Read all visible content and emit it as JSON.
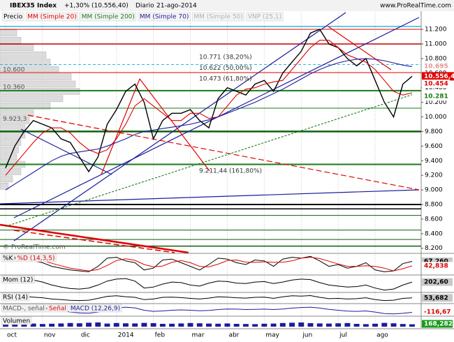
{
  "header": {
    "symbol": "IBEX35 Index",
    "change": "+1,30% (10.556,40)",
    "period": "Diario",
    "date": "21-ago-2014",
    "site": "www.ProRealTime.com",
    "watermark": "© ProRealTime.com"
  },
  "chart_data": [
    {
      "type": "line",
      "categories": [
        "oct",
        null,
        null,
        null,
        "nov",
        null,
        null,
        null,
        "dic",
        null,
        null,
        null,
        "2014",
        null,
        null,
        null,
        "feb",
        null,
        null,
        null,
        "mar",
        null,
        null,
        null,
        "abr",
        null,
        null,
        null,
        "may",
        null,
        null,
        null,
        "jun",
        null,
        null,
        null,
        "jul",
        null,
        null,
        null,
        "ago",
        null,
        null,
        null,
        null
      ],
      "series": [
        {
          "name": "Precio",
          "color": "#000000",
          "values": [
            9300,
            9600,
            9800,
            9950,
            9900,
            9850,
            9700,
            9650,
            9450,
            9250,
            9450,
            9900,
            10100,
            10350,
            10450,
            10200,
            9700,
            9950,
            10050,
            10050,
            10100,
            9950,
            9850,
            10250,
            10400,
            10350,
            10300,
            10450,
            10500,
            10350,
            10600,
            10750,
            10900,
            11150,
            11200,
            11000,
            10950,
            10800,
            10700,
            10800,
            10500,
            10200,
            10000,
            10450,
            10556.4
          ]
        },
        {
          "name": "MM (Simple 20)",
          "color": "#e00000",
          "values": [
            9200,
            9350,
            9500,
            9650,
            9780,
            9850,
            9850,
            9780,
            9650,
            9550,
            9500,
            9550,
            9700,
            9900,
            10150,
            10250,
            10150,
            10050,
            9950,
            9950,
            10050,
            10050,
            9980,
            10000,
            10150,
            10300,
            10380,
            10400,
            10450,
            10480,
            10500,
            10650,
            10800,
            10950,
            11050,
            11050,
            10950,
            10850,
            10800,
            10750,
            10650,
            10500,
            10350,
            10300,
            10330
          ]
        },
        {
          "name": "MM (Simple 200)",
          "color": "#1a7a1a",
          "dashed": true,
          "values": [
            8500,
            8541,
            8582,
            8623,
            8664,
            8705,
            8746,
            8787,
            8828,
            8869,
            8910,
            8951,
            8992,
            9033,
            9074,
            9115,
            9156,
            9197,
            9238,
            9279,
            9320,
            9361,
            9402,
            9443,
            9484,
            9525,
            9566,
            9607,
            9648,
            9689,
            9730,
            9771,
            9812,
            9853,
            9894,
            9935,
            9976,
            10017,
            10058,
            10099,
            10140,
            10181,
            10222,
            10263,
            10304
          ]
        },
        {
          "name": "MM (Simple 70)",
          "color": "#1c1c9c",
          "values": [
            9000,
            9080,
            9160,
            9240,
            9320,
            9400,
            9460,
            9500,
            9520,
            9540,
            9560,
            9600,
            9650,
            9700,
            9760,
            9800,
            9820,
            9840,
            9860,
            9880,
            9900,
            9930,
            9960,
            10000,
            10050,
            10100,
            10150,
            10200,
            10260,
            10320,
            10380,
            10450,
            10520,
            10590,
            10650,
            10700,
            10740,
            10770,
            10790,
            10800,
            10790,
            10770,
            10740,
            10710,
            10690
          ]
        }
      ],
      "inactive_legend": [
        {
          "name": "MM (Simple 50)",
          "color": "#b0b0b0"
        },
        {
          "name": "VNP (25,1)",
          "color": "#b0b0b0"
        }
      ],
      "ylim": [
        8140,
        11430
      ],
      "yticks": [
        {
          "value": 8200,
          "label": "8.200"
        },
        {
          "value": 8400,
          "label": "8.400"
        },
        {
          "value": 8600,
          "label": "8.600"
        },
        {
          "value": 8800,
          "label": "8.800"
        },
        {
          "value": 9000,
          "label": "9.000"
        },
        {
          "value": 9200,
          "label": "9.200"
        },
        {
          "value": 9400,
          "label": "9.400"
        },
        {
          "value": 9600,
          "label": "9.600"
        },
        {
          "value": 9800,
          "label": "9.800"
        },
        {
          "value": 10000,
          "label": "10.000"
        },
        {
          "value": 10200,
          "label": "10.200"
        },
        {
          "value": 10400,
          "label": "10.400"
        },
        {
          "value": 10600,
          "label": "10.600"
        },
        {
          "value": 10800,
          "label": "10.800"
        },
        {
          "value": 11000,
          "label": "11.000"
        },
        {
          "value": 11200,
          "label": "11.200"
        }
      ],
      "price_labels": [
        {
          "value": 10717,
          "label": "10.717",
          "color": "#7fa6a6",
          "style": "text"
        },
        {
          "value": 10695,
          "label": "10.695",
          "color": "#e89090",
          "style": "text"
        },
        {
          "value": 10556.4,
          "label": "10.556,40",
          "color": "#e00000",
          "style": "filled"
        },
        {
          "value": 10454,
          "label": "10.454",
          "color": "#e00000",
          "style": "text"
        },
        {
          "value": 10281,
          "label": "10.281",
          "color": "#1a7a1a",
          "style": "text"
        }
      ],
      "levels": [
        {
          "value": 11240,
          "color": "#33b5e5",
          "width": 1.5
        },
        {
          "value": 11200,
          "color": "#e00000",
          "width": 1
        },
        {
          "value": 11000,
          "color": "#c00000",
          "width": 1.5
        },
        {
          "value": 10717,
          "color": "#33b5e5",
          "width": 1,
          "dashed": true
        },
        {
          "value": 10608,
          "color": "#e00000",
          "width": 1
        },
        {
          "value": 10360,
          "color": "#1a7a1a",
          "width": 2
        },
        {
          "value": 10120,
          "color": "#1a7a1a",
          "width": 1
        },
        {
          "value": 9800,
          "color": "#0f5f0f",
          "width": 2.5
        },
        {
          "value": 9350,
          "color": "#1a7a1a",
          "width": 2
        },
        {
          "value": 8800,
          "color": "#000000",
          "width": 2
        },
        {
          "value": 8740,
          "color": "#000000",
          "width": 1.5
        },
        {
          "value": 8650,
          "color": "#0f5f0f",
          "width": 1
        },
        {
          "value": 8450,
          "color": "#0f5f0f",
          "width": 1
        },
        {
          "value": 8320,
          "color": "#0f5f0f",
          "width": 1
        },
        {
          "value": 8230,
          "color": "#0f5f0f",
          "width": 1.5
        }
      ],
      "annotations": [
        {
          "value": 10771,
          "label": "10.771 (38,20%)"
        },
        {
          "value": 10622,
          "label": "10.622 (50,00%)"
        },
        {
          "value": 10473,
          "label": "10.473 (61,80%)"
        },
        {
          "value": 9211.44,
          "label": "9.211,44 (161,80%)"
        }
      ],
      "left_labels": [
        {
          "value": 10600,
          "label": "10.600"
        },
        {
          "value": 10360,
          "label": "10.360"
        },
        {
          "value": 9923.3,
          "label": "9.923,3"
        }
      ],
      "vnp": {
        "levels": [
          11150,
          11050,
          10950,
          10850,
          10750,
          10650,
          10550,
          10450,
          10350,
          10250,
          10150,
          10050,
          9950,
          9850,
          9750,
          9650,
          9550,
          9450,
          9350,
          9250,
          9150,
          9050
        ],
        "values": [
          20,
          25,
          40,
          55,
          60,
          70,
          85,
          90,
          95,
          75,
          60,
          40,
          35,
          30,
          30,
          25,
          22,
          20,
          30,
          25,
          15,
          10
        ],
        "xlim": [
          0,
          100
        ]
      }
    },
    {
      "type": "line",
      "series": [
        {
          "name": "%K",
          "color": "#000000",
          "values": [
            80,
            90,
            85,
            70,
            60,
            40,
            30,
            20,
            15,
            10,
            40,
            85,
            90,
            70,
            60,
            20,
            30,
            75,
            80,
            60,
            40,
            20,
            50,
            85,
            80,
            60,
            50,
            75,
            70,
            40,
            80,
            90,
            85,
            95,
            70,
            40,
            50,
            30,
            40,
            60,
            20,
            10,
            15,
            55,
            67.26
          ],
          "last_label": "67,260",
          "label_color": "#c8c8c8",
          "label_text": "#000000"
        },
        {
          "name": "%D (14,3,5)",
          "color": "#e00000",
          "values": [
            75,
            82,
            85,
            82,
            72,
            57,
            43,
            30,
            22,
            15,
            22,
            45,
            72,
            82,
            73,
            50,
            37,
            42,
            62,
            72,
            60,
            40,
            37,
            52,
            72,
            75,
            63,
            62,
            65,
            62,
            63,
            70,
            85,
            90,
            83,
            68,
            53,
            40,
            40,
            43,
            40,
            30,
            15,
            27,
            42.838
          ],
          "last_label": "42,838",
          "label_color": "#ffffff",
          "label_text": "#e00000"
        }
      ],
      "ylim": [
        0,
        100
      ]
    },
    {
      "type": "line",
      "series": [
        {
          "name": "Mom (12)",
          "color": "#000000",
          "values": [
            300,
            500,
            550,
            400,
            200,
            -100,
            -300,
            -450,
            -500,
            -400,
            -100,
            300,
            500,
            550,
            300,
            -400,
            -300,
            0,
            200,
            150,
            -100,
            -200,
            100,
            300,
            250,
            100,
            50,
            200,
            250,
            50,
            200,
            400,
            500,
            450,
            150,
            -100,
            -200,
            -300,
            -250,
            -100,
            -400,
            -600,
            -500,
            -100,
            202.6
          ],
          "last_label": "202,60",
          "label_color": "#c8c8c8",
          "label_text": "#000000"
        }
      ],
      "ylim": [
        -700,
        700
      ]
    },
    {
      "type": "line",
      "series": [
        {
          "name": "RSI (14)",
          "color": "#000000",
          "values": [
            62,
            68,
            66,
            60,
            55,
            45,
            40,
            35,
            33,
            36,
            50,
            66,
            70,
            63,
            58,
            40,
            45,
            58,
            60,
            56,
            50,
            45,
            52,
            62,
            60,
            55,
            52,
            58,
            60,
            50,
            62,
            70,
            68,
            72,
            58,
            48,
            50,
            45,
            48,
            55,
            40,
            33,
            36,
            50,
            53.682
          ],
          "last_label": "53,682",
          "label_color": "#c8c8c8",
          "label_text": "#000000"
        }
      ],
      "ylim": [
        20,
        80
      ]
    },
    {
      "type": "line",
      "legend": [
        "MACD-, señal",
        "Señal"
      ],
      "series": [
        {
          "name": "MACD (12,26,9)",
          "color": "#1c1c9c",
          "values": [
            100,
            150,
            180,
            170,
            130,
            60,
            -20,
            -100,
            -150,
            -160,
            -100,
            20,
            120,
            170,
            130,
            0,
            -60,
            -40,
            0,
            20,
            0,
            -30,
            -10,
            40,
            70,
            60,
            40,
            50,
            60,
            40,
            70,
            120,
            150,
            170,
            120,
            50,
            0,
            -50,
            -60,
            -40,
            -100,
            -180,
            -200,
            -170,
            -116.67
          ],
          "last_label": "-116,67",
          "label_color": "#ffffff",
          "label_text": "#e00000"
        }
      ],
      "ylim": [
        -250,
        250
      ]
    },
    {
      "type": "bar",
      "series": [
        {
          "name": "Volumen",
          "color": "#1c1c9c",
          "values": [
            200,
            250,
            180,
            220,
            190,
            210,
            230,
            260,
            240,
            280,
            300,
            220,
            260,
            240,
            230,
            270,
            250,
            200,
            210,
            230,
            260,
            240,
            220,
            210,
            230,
            200,
            190,
            180,
            210,
            220,
            260,
            280,
            300,
            250,
            230,
            220,
            240,
            260,
            200,
            180,
            210,
            270,
            240,
            190,
            168.282
          ],
          "last_label": "168,282",
          "label_color": "#1a9a1a",
          "label_text": "#ffffff"
        }
      ],
      "ylim": [
        0,
        600
      ]
    }
  ]
}
